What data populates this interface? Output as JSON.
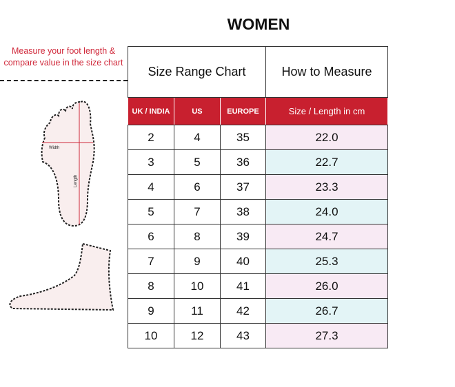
{
  "title": "WOMEN",
  "note": "Measure your foot length & compare value in the size chart",
  "foot_labels": {
    "width": "Width",
    "length": "Length"
  },
  "table": {
    "header_left": "Size Range Chart",
    "header_right": "How to Measure",
    "columns": [
      "UK / INDIA",
      "US",
      "EUROPE",
      "Size / Length in cm"
    ],
    "rows": [
      [
        "2",
        "4",
        "35",
        "22.0"
      ],
      [
        "3",
        "5",
        "36",
        "22.7"
      ],
      [
        "4",
        "6",
        "37",
        "23.3"
      ],
      [
        "5",
        "7",
        "38",
        "24.0"
      ],
      [
        "6",
        "8",
        "39",
        "24.7"
      ],
      [
        "7",
        "9",
        "40",
        "25.3"
      ],
      [
        "8",
        "10",
        "41",
        "26.0"
      ],
      [
        "9",
        "11",
        "42",
        "26.7"
      ],
      [
        "10",
        "12",
        "43",
        "27.3"
      ]
    ]
  },
  "colors": {
    "accent": "#c8202f",
    "row_pink": "#f8eaf4",
    "row_cyan": "#e3f4f6"
  }
}
